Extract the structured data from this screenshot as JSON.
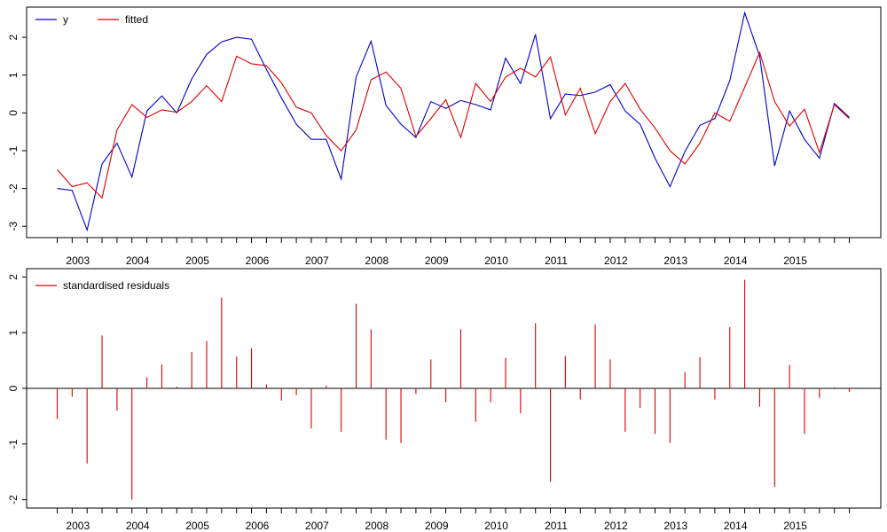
{
  "colors": {
    "y": "#0000cc",
    "fitted": "#dd0000",
    "residuals": "#dd0000",
    "axis": "#000000"
  },
  "chart_data": [
    {
      "type": "line",
      "legend": {
        "position": "top-left",
        "entries": [
          "y",
          "fitted"
        ]
      },
      "x_tick_labels": [
        "2003",
        "2004",
        "2005",
        "2006",
        "2007",
        "2008",
        "2009",
        "2010",
        "2011",
        "2012",
        "2013",
        "2014",
        "2015"
      ],
      "x_label_quarter_start": 1,
      "quarters_per_year": 4,
      "ylim": [
        -3.3,
        2.8
      ],
      "y_ticks": [
        -3,
        -2,
        -1,
        0,
        1,
        2
      ],
      "y_tick_labels": [
        "-3",
        "-2",
        "-1",
        "0",
        "1",
        "2"
      ],
      "series": [
        {
          "name": "y",
          "color_key": "y",
          "values": [
            -2.0,
            -2.05,
            -3.1,
            -1.35,
            -0.8,
            -1.7,
            0.05,
            0.45,
            0.0,
            0.9,
            1.55,
            1.88,
            2.0,
            1.95,
            1.15,
            0.4,
            -0.3,
            -0.7,
            -0.7,
            -1.75,
            0.95,
            1.9,
            0.2,
            -0.3,
            -0.65,
            0.3,
            0.12,
            0.33,
            0.22,
            0.08,
            1.45,
            0.78,
            2.08,
            -0.15,
            0.5,
            0.46,
            0.55,
            0.75,
            0.05,
            -0.3,
            -1.2,
            -1.95,
            -1.02,
            -0.33,
            -0.15,
            0.85,
            2.65,
            1.5,
            -1.4,
            0.05,
            -0.7,
            -1.2,
            0.25,
            -0.12
          ]
        },
        {
          "name": "fitted",
          "color_key": "fitted",
          "values": [
            -1.5,
            -1.95,
            -1.85,
            -2.25,
            -0.45,
            0.22,
            -0.12,
            0.08,
            0.02,
            0.3,
            0.72,
            0.3,
            1.5,
            1.3,
            1.25,
            0.8,
            0.15,
            0.0,
            -0.6,
            -1.0,
            -0.45,
            0.88,
            1.08,
            0.65,
            -0.62,
            -0.15,
            0.35,
            -0.65,
            0.78,
            0.3,
            0.95,
            1.18,
            0.95,
            1.48,
            -0.05,
            0.65,
            -0.55,
            0.3,
            0.78,
            0.1,
            -0.4,
            -1.0,
            -1.35,
            -0.8,
            0.0,
            -0.22,
            0.68,
            1.6,
            0.3,
            -0.35,
            0.1,
            -1.05,
            0.22,
            -0.15
          ]
        }
      ]
    },
    {
      "type": "bar",
      "legend": {
        "position": "top-left",
        "entries": [
          "standardised residuals"
        ]
      },
      "x_tick_labels": [
        "2003",
        "2004",
        "2005",
        "2006",
        "2007",
        "2008",
        "2009",
        "2010",
        "2011",
        "2012",
        "2013",
        "2014",
        "2015"
      ],
      "x_label_quarter_start": 1,
      "quarters_per_year": 4,
      "ylim": [
        -2.15,
        2.15
      ],
      "y_ticks": [
        -2,
        -1,
        0,
        1,
        2
      ],
      "y_tick_labels": [
        "-2",
        "-1",
        "0",
        "1",
        "2"
      ],
      "zero_line": true,
      "series": [
        {
          "name": "standardised residuals",
          "color_key": "residuals",
          "values": [
            -0.55,
            -0.15,
            -1.35,
            0.95,
            -0.4,
            -2.0,
            0.2,
            0.43,
            0.03,
            0.65,
            0.85,
            1.63,
            0.57,
            0.72,
            0.07,
            -0.22,
            -0.12,
            -0.72,
            0.05,
            -0.78,
            1.52,
            1.06,
            -0.92,
            -0.98,
            -0.1,
            0.52,
            -0.25,
            1.06,
            -0.6,
            -0.25,
            0.55,
            -0.45,
            1.17,
            -1.68,
            0.58,
            -0.2,
            1.15,
            0.52,
            -0.78,
            -0.35,
            -0.82,
            -0.98,
            0.29,
            0.56,
            -0.2,
            1.1,
            1.95,
            -0.33,
            -1.77,
            0.42,
            -0.82,
            -0.17,
            0.02,
            -0.06
          ]
        }
      ]
    }
  ]
}
